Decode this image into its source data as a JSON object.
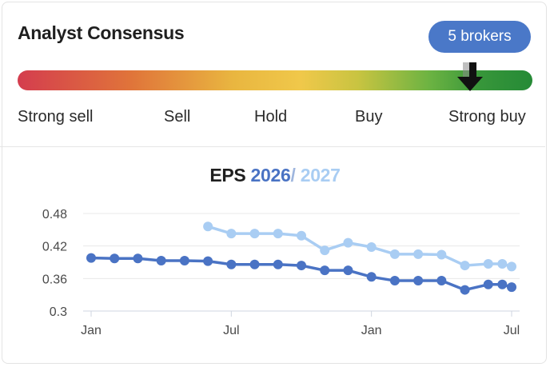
{
  "card": {
    "title": "Analyst Consensus",
    "badge": "5 brokers",
    "scale_labels": [
      "Strong sell",
      "Sell",
      "Hold",
      "Buy",
      "Strong buy"
    ],
    "consensus_level": 0.89,
    "arrow_icon": "down-arrow-icon"
  },
  "eps": {
    "title_word": "EPS",
    "year1": "2026",
    "separator": "/",
    "year2": "2027"
  },
  "colors": {
    "badge": "#4a78c8",
    "series_2026": "#4a73c4",
    "series_2027": "#a9cdf3"
  },
  "chart_data": {
    "type": "line",
    "title": "EPS 2026 / 2027",
    "xlabel": "",
    "ylabel": "",
    "ylim": [
      0.3,
      0.48
    ],
    "yticks": [
      "0.48",
      "0.42",
      "0.36",
      "0.3"
    ],
    "xticks": [
      {
        "label": "Jan",
        "x": 0
      },
      {
        "label": "Jul",
        "x": 6
      },
      {
        "label": "Jan",
        "x": 12
      },
      {
        "label": "Jul",
        "x": 18
      }
    ],
    "grid": true,
    "series": [
      {
        "name": "2026",
        "color": "#4a73c4",
        "points": [
          [
            0,
            0.398
          ],
          [
            1,
            0.397
          ],
          [
            2,
            0.397
          ],
          [
            3,
            0.393
          ],
          [
            4,
            0.393
          ],
          [
            5,
            0.392
          ],
          [
            6,
            0.386
          ],
          [
            7,
            0.386
          ],
          [
            8,
            0.386
          ],
          [
            9,
            0.384
          ],
          [
            10,
            0.375
          ],
          [
            11,
            0.375
          ],
          [
            12,
            0.363
          ],
          [
            13,
            0.356
          ],
          [
            14,
            0.356
          ],
          [
            15,
            0.356
          ],
          [
            16,
            0.339
          ],
          [
            17,
            0.349
          ],
          [
            17.6,
            0.349
          ],
          [
            18,
            0.344
          ]
        ]
      },
      {
        "name": "2027",
        "color": "#a9cdf3",
        "points": [
          [
            5,
            0.456
          ],
          [
            6,
            0.443
          ],
          [
            7,
            0.443
          ],
          [
            8,
            0.443
          ],
          [
            9,
            0.439
          ],
          [
            10,
            0.412
          ],
          [
            11,
            0.426
          ],
          [
            12,
            0.418
          ],
          [
            13,
            0.405
          ],
          [
            14,
            0.405
          ],
          [
            15,
            0.404
          ],
          [
            16,
            0.384
          ],
          [
            17,
            0.387
          ],
          [
            17.6,
            0.387
          ],
          [
            18,
            0.382
          ]
        ]
      }
    ]
  }
}
